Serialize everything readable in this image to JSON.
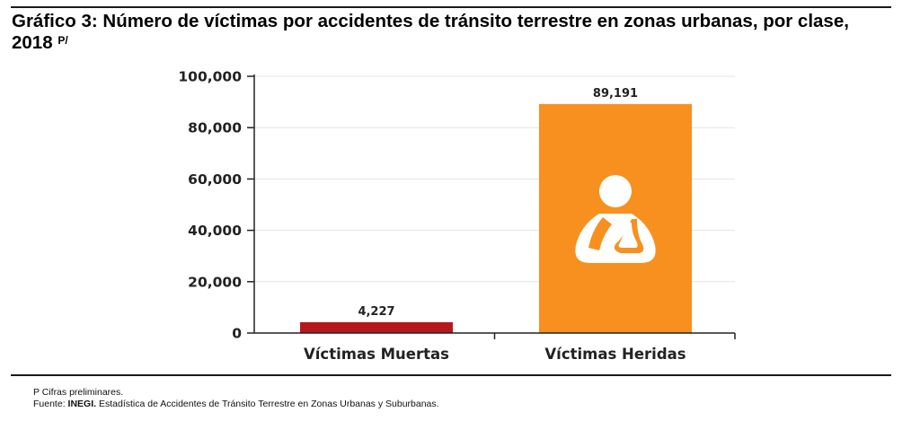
{
  "title": {
    "text": "Gráfico 3: Número de víctimas por accidentes de tránsito terrestre en zonas urbanas, por clase, 2018",
    "superscript": "P/"
  },
  "footnotes": {
    "preliminary": "P Cifras preliminares.",
    "source_prefix": "Fuente: ",
    "source_org": "INEGI.",
    "source_text": " Estadística de Accidentes de Tránsito Terrestre en Zonas Urbanas y Suburbanas."
  },
  "colors": {
    "muertas": "#b5191d",
    "heridas": "#f7901e",
    "axis": "#222222",
    "grid": "#e3e3e3",
    "icon": "#ffffff"
  },
  "icon_name": "injured-person-sling-icon",
  "chart_data": {
    "type": "bar",
    "categories": [
      "Víctimas Muertas",
      "Víctimas Heridas"
    ],
    "values": [
      4227,
      89191
    ],
    "value_labels": [
      "4,227",
      "89,191"
    ],
    "yticks": [
      0,
      20000,
      40000,
      60000,
      80000,
      100000
    ],
    "ytick_labels": [
      "0",
      "20,000",
      "40,000",
      "60,000",
      "80,000",
      "100,000"
    ],
    "ylim": [
      0,
      100000
    ],
    "grid": true,
    "legend": "none",
    "xlabel": "",
    "ylabel": ""
  }
}
